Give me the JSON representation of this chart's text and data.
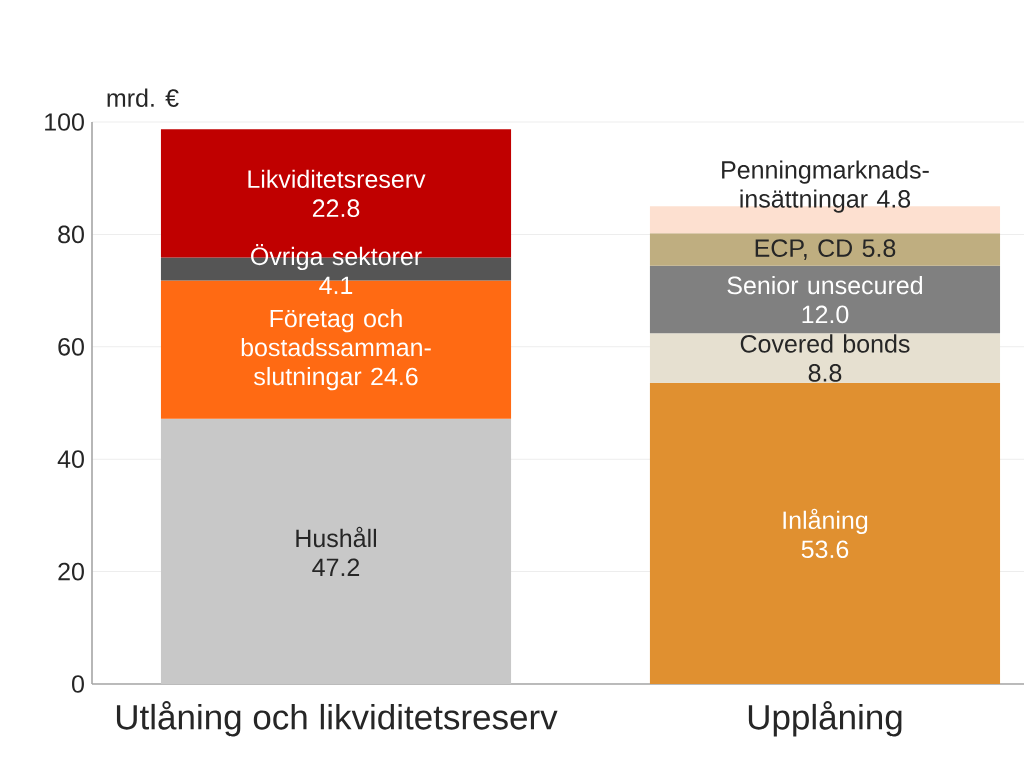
{
  "chart_data": {
    "type": "bar",
    "stacked": true,
    "ylabel": "mrd. €",
    "categories": [
      "Utlåning och likviditetsreserv",
      "Upplåning"
    ],
    "ylim": [
      0,
      100
    ],
    "yticks": [
      0,
      20,
      40,
      60,
      80,
      100
    ],
    "grid": "y",
    "series": [
      {
        "name": "Hushåll",
        "color": "#c8c8c8",
        "values": [
          47.2,
          null
        ],
        "value_labels": [
          "47.2",
          null
        ]
      },
      {
        "name": "Företag och bostadssamman-slutningar",
        "color": "#ff6a13",
        "values": [
          24.6,
          null
        ],
        "value_labels": [
          "24.6",
          null
        ]
      },
      {
        "name": "Övriga sektorer",
        "color": "#555555",
        "values": [
          4.1,
          null
        ],
        "value_labels": [
          "4.1",
          null
        ]
      },
      {
        "name": "Likviditetsreserv",
        "color": "#c00000",
        "values": [
          22.8,
          null
        ],
        "value_labels": [
          "22.8",
          null
        ]
      },
      {
        "name": "Inlåning",
        "color": "#e09030",
        "values": [
          null,
          53.6
        ],
        "value_labels": [
          null,
          "53.6"
        ]
      },
      {
        "name": "Covered bonds",
        "color": "#e6e0d0",
        "values": [
          null,
          8.8
        ],
        "value_labels": [
          null,
          "8.8"
        ]
      },
      {
        "name": "Senior unsecured",
        "color": "#808080",
        "values": [
          null,
          12.0
        ],
        "value_labels": [
          null,
          "12.0"
        ]
      },
      {
        "name": "ECP, CD",
        "color": "#bfae80",
        "values": [
          null,
          5.8
        ],
        "value_labels": [
          null,
          "5.8"
        ]
      },
      {
        "name": "Penningmarknads-insättningar",
        "color": "#fde0d0",
        "values": [
          null,
          4.8
        ],
        "value_labels": [
          null,
          "4.8"
        ]
      }
    ]
  }
}
